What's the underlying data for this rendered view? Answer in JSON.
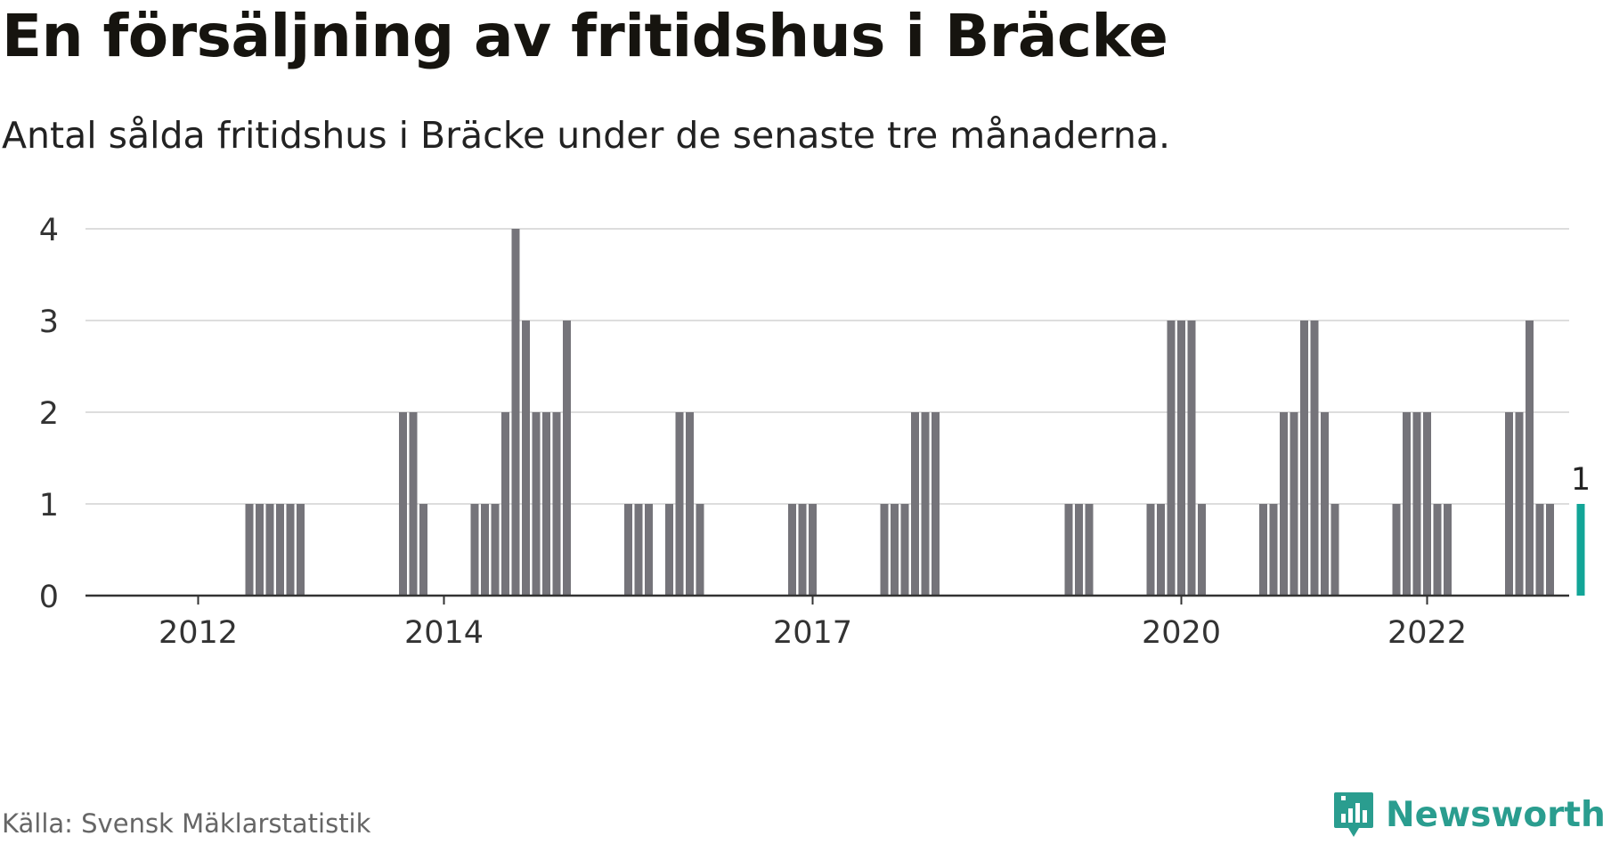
{
  "title": "En försäljning av fritidshus i Bräcke",
  "subtitle": "Antal sålda fritidshus i Bräcke under de senaste tre månaderna.",
  "source": "Källa: Svensk Mäklarstatistik",
  "brand": {
    "name": "Newsworthy",
    "icon": "newsworthy-chart-logo-icon"
  },
  "colors": {
    "bar": "#75747a",
    "highlight": "#12a597",
    "grid": "#dddddd",
    "axis": "#333333",
    "brand": "#2a9d8f"
  },
  "chart_data": {
    "type": "bar",
    "x_unit": "month",
    "ylim": [
      0,
      4
    ],
    "yticks": [
      0,
      1,
      2,
      3,
      4
    ],
    "xticks": [
      "2012",
      "2014",
      "2017",
      "2020",
      "2022"
    ],
    "grid": true,
    "highlight_label": "1",
    "series": [
      {
        "values": [
          {
            "month": "2012-06",
            "value": 1
          },
          {
            "month": "2012-07",
            "value": 1
          },
          {
            "month": "2012-08",
            "value": 1
          },
          {
            "month": "2012-09",
            "value": 1
          },
          {
            "month": "2012-10",
            "value": 1
          },
          {
            "month": "2012-11",
            "value": 1
          },
          {
            "month": "2013-09",
            "value": 2
          },
          {
            "month": "2013-10",
            "value": 2
          },
          {
            "month": "2013-11",
            "value": 1
          },
          {
            "month": "2014-04",
            "value": 1
          },
          {
            "month": "2014-05",
            "value": 1
          },
          {
            "month": "2014-06",
            "value": 1
          },
          {
            "month": "2014-07",
            "value": 2
          },
          {
            "month": "2014-08",
            "value": 4
          },
          {
            "month": "2014-09",
            "value": 3
          },
          {
            "month": "2014-10",
            "value": 2
          },
          {
            "month": "2014-11",
            "value": 2
          },
          {
            "month": "2014-12",
            "value": 2
          },
          {
            "month": "2015-01",
            "value": 3
          },
          {
            "month": "2015-07",
            "value": 1
          },
          {
            "month": "2015-08",
            "value": 1
          },
          {
            "month": "2015-09",
            "value": 1
          },
          {
            "month": "2015-11",
            "value": 1
          },
          {
            "month": "2015-12",
            "value": 2
          },
          {
            "month": "2016-01",
            "value": 2
          },
          {
            "month": "2016-02",
            "value": 1
          },
          {
            "month": "2016-11",
            "value": 1
          },
          {
            "month": "2016-12",
            "value": 1
          },
          {
            "month": "2017-01",
            "value": 1
          },
          {
            "month": "2017-08",
            "value": 1
          },
          {
            "month": "2017-09",
            "value": 1
          },
          {
            "month": "2017-10",
            "value": 1
          },
          {
            "month": "2017-11",
            "value": 2
          },
          {
            "month": "2017-12",
            "value": 2
          },
          {
            "month": "2018-01",
            "value": 2
          },
          {
            "month": "2019-02",
            "value": 1
          },
          {
            "month": "2019-03",
            "value": 1
          },
          {
            "month": "2019-04",
            "value": 1
          },
          {
            "month": "2019-10",
            "value": 1
          },
          {
            "month": "2019-11",
            "value": 1
          },
          {
            "month": "2019-12",
            "value": 3
          },
          {
            "month": "2020-01",
            "value": 3
          },
          {
            "month": "2020-02",
            "value": 3
          },
          {
            "month": "2020-03",
            "value": 1
          },
          {
            "month": "2020-09",
            "value": 1
          },
          {
            "month": "2020-10",
            "value": 1
          },
          {
            "month": "2020-11",
            "value": 2
          },
          {
            "month": "2020-12",
            "value": 2
          },
          {
            "month": "2021-01",
            "value": 3
          },
          {
            "month": "2021-02",
            "value": 3
          },
          {
            "month": "2021-03",
            "value": 2
          },
          {
            "month": "2021-04",
            "value": 1
          },
          {
            "month": "2021-10",
            "value": 1
          },
          {
            "month": "2021-11",
            "value": 2
          },
          {
            "month": "2021-12",
            "value": 2
          },
          {
            "month": "2022-01",
            "value": 2
          },
          {
            "month": "2022-02",
            "value": 1
          },
          {
            "month": "2022-03",
            "value": 1
          },
          {
            "month": "2022-09",
            "value": 2
          },
          {
            "month": "2022-10",
            "value": 2
          },
          {
            "month": "2022-11",
            "value": 3
          },
          {
            "month": "2022-12",
            "value": 1
          },
          {
            "month": "2023-01",
            "value": 1
          },
          {
            "month": "2023-04",
            "value": 1,
            "highlight": true
          }
        ]
      }
    ]
  }
}
